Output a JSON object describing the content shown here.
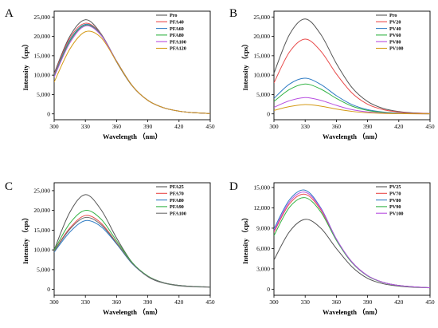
{
  "chart_data": [
    {
      "panel": "A",
      "type": "line",
      "xlabel": "Wavelength （nm）",
      "ylabel": "Intensity （cps）",
      "xlim": [
        300,
        450
      ],
      "ylim": [
        -1500,
        26500
      ],
      "xticks": [
        300,
        330,
        360,
        390,
        420,
        450
      ],
      "yticks": [
        0,
        5000,
        10000,
        15000,
        20000,
        25000
      ],
      "ytick_labels": [
        "0",
        "5,000",
        "10,000",
        "15,000",
        "20,000",
        "25,000"
      ],
      "legend_position": "top-right",
      "series": [
        {
          "name": "Pro",
          "color": "#555555",
          "x": [
            300,
            315,
            330,
            345,
            360,
            375,
            390,
            405,
            420,
            435,
            450
          ],
          "values": [
            10500,
            20000,
            24300,
            20700,
            13400,
            7200,
            3500,
            1600,
            700,
            300,
            100
          ]
        },
        {
          "name": "PFA40",
          "color": "#e84a4a",
          "x": [
            300,
            315,
            330,
            345,
            360,
            375,
            390,
            405,
            420,
            435,
            450
          ],
          "values": [
            10200,
            19500,
            23400,
            20600,
            13600,
            7300,
            3500,
            1600,
            700,
            300,
            100
          ]
        },
        {
          "name": "PFA60",
          "color": "#2f7cc4",
          "x": [
            300,
            315,
            330,
            345,
            360,
            375,
            390,
            405,
            420,
            435,
            450
          ],
          "values": [
            9900,
            19000,
            23100,
            20500,
            13600,
            7300,
            3500,
            1600,
            700,
            300,
            100
          ]
        },
        {
          "name": "PFA80",
          "color": "#34b446",
          "x": [
            300,
            315,
            330,
            345,
            360,
            375,
            390,
            405,
            420,
            435,
            450
          ],
          "values": [
            9700,
            18700,
            22900,
            20400,
            13600,
            7300,
            3500,
            1600,
            700,
            300,
            100
          ]
        },
        {
          "name": "PFA100",
          "color": "#b84fe0",
          "x": [
            300,
            315,
            330,
            345,
            360,
            375,
            390,
            405,
            420,
            435,
            450
          ],
          "values": [
            9500,
            18300,
            22700,
            20300,
            13600,
            7300,
            3500,
            1600,
            700,
            300,
            100
          ]
        },
        {
          "name": "PFA120",
          "color": "#d49a17",
          "x": [
            300,
            315,
            330,
            345,
            360,
            375,
            390,
            405,
            420,
            435,
            450
          ],
          "values": [
            8200,
            16700,
            21200,
            19700,
            13500,
            7300,
            3500,
            1600,
            700,
            300,
            100
          ]
        }
      ]
    },
    {
      "panel": "B",
      "type": "line",
      "xlabel": "Wavelength （nm）",
      "ylabel": "Intensity （cps）",
      "xlim": [
        300,
        450
      ],
      "ylim": [
        -1500,
        26500
      ],
      "xticks": [
        300,
        330,
        360,
        390,
        420,
        450
      ],
      "yticks": [
        0,
        5000,
        10000,
        15000,
        20000,
        25000
      ],
      "ytick_labels": [
        "0",
        "5,000",
        "10,000",
        "15,000",
        "20,000",
        "25,000"
      ],
      "legend_position": "top-right",
      "series": [
        {
          "name": "Pro",
          "color": "#555555",
          "x": [
            300,
            315,
            330,
            345,
            360,
            375,
            390,
            405,
            420,
            435,
            450
          ],
          "values": [
            10500,
            20500,
            24500,
            20500,
            13000,
            6800,
            3200,
            1400,
            600,
            250,
            100
          ]
        },
        {
          "name": "PV20",
          "color": "#e84a4a",
          "x": [
            300,
            315,
            330,
            345,
            360,
            375,
            390,
            405,
            420,
            435,
            450
          ],
          "values": [
            8000,
            16000,
            19300,
            16200,
            10300,
            5400,
            2500,
            1100,
            480,
            200,
            80
          ]
        },
        {
          "name": "PV40",
          "color": "#2f7cc4",
          "x": [
            300,
            315,
            330,
            345,
            360,
            375,
            390,
            405,
            420,
            435,
            450
          ],
          "values": [
            4000,
            7700,
            9200,
            7600,
            4700,
            2400,
            1100,
            480,
            200,
            80,
            30
          ]
        },
        {
          "name": "PV60",
          "color": "#34b446",
          "x": [
            300,
            315,
            330,
            345,
            360,
            375,
            390,
            405,
            420,
            435,
            450
          ],
          "values": [
            3200,
            6300,
            7700,
            6400,
            4000,
            2000,
            900,
            400,
            170,
            70,
            30
          ]
        },
        {
          "name": "PV80",
          "color": "#b84fe0",
          "x": [
            300,
            315,
            330,
            345,
            360,
            375,
            390,
            405,
            420,
            435,
            450
          ],
          "values": [
            1700,
            3400,
            4200,
            3500,
            2200,
            1100,
            500,
            220,
            90,
            40,
            20
          ]
        },
        {
          "name": "PV100",
          "color": "#d49a17",
          "x": [
            300,
            315,
            330,
            345,
            360,
            375,
            390,
            405,
            420,
            435,
            450
          ],
          "values": [
            900,
            1900,
            2400,
            2000,
            1250,
            650,
            300,
            130,
            60,
            25,
            10
          ]
        }
      ]
    },
    {
      "panel": "C",
      "type": "line",
      "xlabel": "Wavelength （nm）",
      "ylabel": "Intensity （cps）",
      "xlim": [
        300,
        450
      ],
      "ylim": [
        -1500,
        27000
      ],
      "xticks": [
        300,
        330,
        360,
        390,
        420,
        450
      ],
      "yticks": [
        0,
        5000,
        10000,
        15000,
        20000,
        25000
      ],
      "ytick_labels": [
        "0",
        "5,000",
        "10,000",
        "15,000",
        "20,000",
        "25,000"
      ],
      "legend_position": "top-right",
      "series": [
        {
          "name": "PFA25",
          "color": "#555555",
          "x": [
            300,
            315,
            330,
            345,
            360,
            375,
            390,
            405,
            420,
            435,
            450
          ],
          "values": [
            10000,
            19500,
            24000,
            20200,
            13000,
            6800,
            3200,
            1600,
            900,
            650,
            550
          ]
        },
        {
          "name": "PFA70",
          "color": "#e84a4a",
          "x": [
            300,
            315,
            330,
            345,
            360,
            375,
            390,
            405,
            420,
            435,
            450
          ],
          "values": [
            9700,
            15500,
            18700,
            16800,
            11800,
            6600,
            3300,
            1700,
            1000,
            700,
            600
          ]
        },
        {
          "name": "PFA80",
          "color": "#2f7cc4",
          "x": [
            300,
            315,
            330,
            345,
            360,
            375,
            390,
            405,
            420,
            435,
            450
          ],
          "values": [
            9400,
            14500,
            17400,
            15900,
            11500,
            6500,
            3300,
            1700,
            1000,
            700,
            600
          ]
        },
        {
          "name": "PFA90",
          "color": "#34b446",
          "x": [
            300,
            315,
            330,
            345,
            360,
            375,
            390,
            405,
            420,
            435,
            450
          ],
          "values": [
            9900,
            16700,
            20000,
            17800,
            12300,
            6800,
            3400,
            1700,
            1000,
            700,
            600
          ]
        },
        {
          "name": "PFA100",
          "color": "#6d6d6d",
          "x": [
            300,
            315,
            330,
            345,
            360,
            375,
            390,
            405,
            420,
            435,
            450
          ],
          "values": [
            9600,
            15200,
            18200,
            16400,
            11700,
            6600,
            3300,
            1700,
            1000,
            700,
            600
          ]
        }
      ]
    },
    {
      "panel": "D",
      "type": "line",
      "xlabel": "Wavelength （nm）",
      "ylabel": "Intensity （cps）",
      "xlim": [
        300,
        450
      ],
      "ylim": [
        -900,
        15700
      ],
      "xticks": [
        300,
        330,
        360,
        390,
        420,
        450
      ],
      "yticks": [
        0,
        3000,
        6000,
        9000,
        12000,
        15000
      ],
      "ytick_labels": [
        "0",
        "3,000",
        "6,000",
        "9,000",
        "12,000",
        "15,000"
      ],
      "legend_position": "top-right",
      "series": [
        {
          "name": "PV25",
          "color": "#555555",
          "x": [
            300,
            315,
            330,
            345,
            360,
            375,
            390,
            405,
            420,
            435,
            450
          ],
          "values": [
            4300,
            8500,
            10300,
            9000,
            6000,
            3300,
            1600,
            800,
            450,
            280,
            200
          ]
        },
        {
          "name": "PV70",
          "color": "#e84a4a",
          "x": [
            300,
            315,
            330,
            345,
            360,
            375,
            390,
            405,
            420,
            435,
            450
          ],
          "values": [
            8400,
            12600,
            14000,
            11700,
            7300,
            4000,
            2000,
            1000,
            550,
            330,
            220
          ]
        },
        {
          "name": "PV80",
          "color": "#2f7cc4",
          "x": [
            300,
            315,
            330,
            345,
            360,
            375,
            390,
            405,
            420,
            435,
            450
          ],
          "values": [
            8900,
            13200,
            14600,
            12000,
            7400,
            4000,
            2000,
            1000,
            550,
            330,
            220
          ]
        },
        {
          "name": "PV90",
          "color": "#34b446",
          "x": [
            300,
            315,
            330,
            345,
            360,
            375,
            390,
            405,
            420,
            435,
            450
          ],
          "values": [
            7900,
            12100,
            13500,
            11400,
            7200,
            3900,
            1950,
            980,
            540,
            320,
            220
          ]
        },
        {
          "name": "PV100",
          "color": "#b84fe0",
          "x": [
            300,
            315,
            330,
            345,
            360,
            375,
            390,
            405,
            420,
            435,
            450
          ],
          "values": [
            8600,
            12900,
            14300,
            11900,
            7400,
            4000,
            2000,
            1000,
            550,
            330,
            220
          ]
        }
      ]
    }
  ]
}
